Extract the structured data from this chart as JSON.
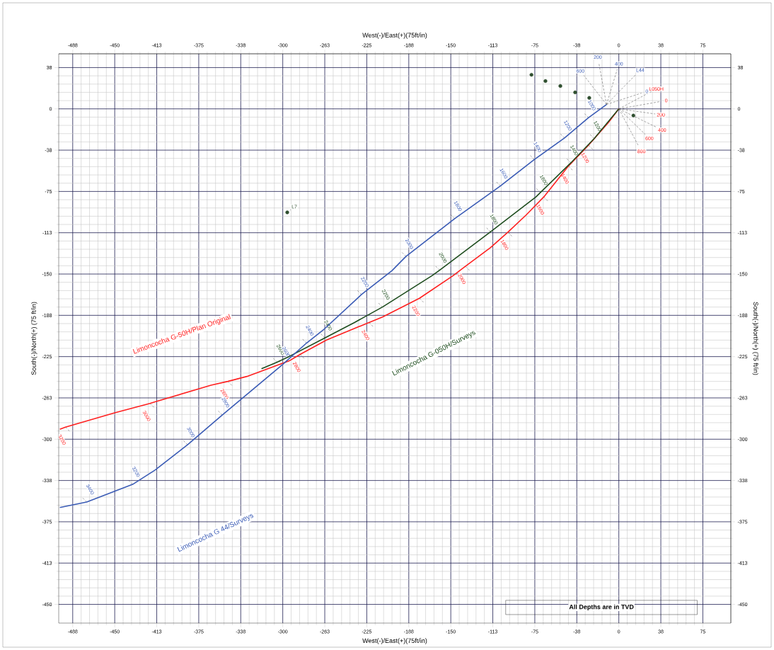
{
  "chart_data": {
    "type": "line",
    "xlabel": "West(-)/East(+)(75ft/in)",
    "x2label": "West(-)/East(+)(75ft/in)",
    "ylabel": "South(-)/North(+) (75 ft/in)",
    "y2label": "South(-)/North(+) (75 ft/in)",
    "xlim": [
      -500,
      100
    ],
    "ylim": [
      -467,
      50
    ],
    "x2lim": [
      -500,
      100
    ],
    "y2lim": [
      -467,
      50
    ],
    "xticks": [
      {
        "value": -487.5,
        "label": "-488"
      },
      -450,
      {
        "value": -412.5,
        "label": "-413"
      },
      -375,
      {
        "value": -337.5,
        "label": "-338"
      },
      -300,
      {
        "value": -262.5,
        "label": "-263"
      },
      -225,
      {
        "value": -187.5,
        "label": "-188"
      },
      -150,
      {
        "value": -112.5,
        "label": "-113"
      },
      -75,
      {
        "value": -37.5,
        "label": "-38"
      },
      0,
      {
        "value": 37.5,
        "label": "38"
      },
      75
    ],
    "x2ticks": [
      {
        "value": -487.5,
        "label": "-488"
      },
      -450,
      {
        "value": -412.5,
        "label": "-413"
      },
      -375,
      {
        "value": -337.5,
        "label": "-338"
      },
      -300,
      {
        "value": -262.5,
        "label": "-263"
      },
      -225,
      {
        "value": -187.5,
        "label": "-188"
      },
      -150,
      {
        "value": -112.5,
        "label": "-113"
      },
      -75,
      {
        "value": -37.5,
        "label": "-38"
      },
      0,
      {
        "value": 37.5,
        "label": "38"
      },
      75
    ],
    "yticks": [
      {
        "value": 37.5,
        "label": "38"
      },
      0,
      {
        "value": -37.5,
        "label": "-38"
      },
      -75,
      {
        "value": -112.5,
        "label": "-113"
      },
      -150,
      {
        "value": -187.5,
        "label": "-188"
      },
      -225,
      {
        "value": -262.5,
        "label": "-263"
      },
      -300,
      {
        "value": -337.5,
        "label": "-338"
      },
      -375,
      {
        "value": -412.5,
        "label": "-413"
      },
      -450
    ],
    "y2ticks": [
      {
        "value": 37.5,
        "label": "38"
      },
      0,
      {
        "value": -37.5,
        "label": "-38"
      },
      -75,
      {
        "value": -112.5,
        "label": "-113"
      },
      -150,
      {
        "value": -187.5,
        "label": "-188"
      },
      -225,
      {
        "value": -262.5,
        "label": "-263"
      },
      -300,
      {
        "value": -337.5,
        "label": "-338"
      },
      -375,
      {
        "value": -412.5,
        "label": "-413"
      },
      -450
    ],
    "grid": true,
    "line_style": "solid",
    "series": [
      {
        "name": "Limoncocha G-50H/Plan Original",
        "color": "#ff2020",
        "x": [
          0,
          -9.4,
          -27,
          -45,
          -67,
          -83,
          -99,
          -114.5,
          -137,
          -148,
          -178,
          -211,
          -223,
          -261,
          -284.5,
          -294.5,
          -332,
          -349,
          -364,
          -414,
          -418.5,
          -450,
          -494,
          -499
        ],
        "values": [
          0,
          -12.6,
          -33,
          -52,
          -80,
          -96.6,
          -112,
          -126,
          -143,
          -151.5,
          -172,
          -189,
          -194,
          -210,
          -223,
          -229,
          -243,
          -247.5,
          -251,
          -266,
          -267.5,
          -276,
          -289,
          -291
        ]
      },
      {
        "name": "Limoncocha G-050H/Surveys",
        "color": "#1e4d1e",
        "x": [
          0,
          -22,
          -42.8,
          -70,
          -74,
          -114.5,
          -160,
          -166.8,
          -211,
          -236,
          -262.4,
          -294.5,
          -305,
          -319
        ],
        "values": [
          0,
          -27,
          -49,
          -76,
          -80,
          -111.7,
          -146.5,
          -151.5,
          -180,
          -194,
          -208,
          -225,
          -230,
          -236
        ]
      },
      {
        "name": "Limoncocha G 44/Surveys",
        "color": "#3a5bb5",
        "x": [
          -11,
          -27,
          -48.5,
          -75.5,
          -105.7,
          -146.6,
          -190,
          -202.6,
          -229.7,
          -263,
          -278.8,
          -300,
          -354,
          -385,
          -414,
          -434,
          -475,
          -499
        ],
        "values": [
          4,
          -8,
          -26.5,
          -46,
          -70,
          -99.7,
          -134,
          -147,
          -168.6,
          -200,
          -212.7,
          -232,
          -278,
          -305,
          -328,
          -341,
          -357,
          -362
        ]
      },
      {
        "type": "scatter",
        "color": "#2f4f2f",
        "x": [
          -78,
          -65.5,
          -52.2,
          -39,
          -26.4,
          13,
          -296
        ],
        "values": [
          31,
          25.3,
          20.8,
          15,
          10,
          -6,
          -94
        ]
      }
    ],
    "annotations": [
      "All Depths are in TVD",
      {
        "text": "L7",
        "x": -296,
        "y": -94
      },
      {
        "text": "L050H",
        "x": 0,
        "y": 0
      },
      {
        "text": "0",
        "x": 0,
        "y": 0
      },
      {
        "text": "200",
        "x": 0,
        "y": 0
      },
      {
        "text": "400",
        "x": 0,
        "y": 0
      },
      {
        "text": "600",
        "x": 0,
        "y": 0
      },
      {
        "text": "800",
        "x": 0,
        "y": 0
      },
      {
        "text": "600",
        "x": -11,
        "y": 4
      },
      {
        "text": "200",
        "x": -11,
        "y": 4
      },
      {
        "text": "400",
        "x": -11,
        "y": 4
      },
      {
        "text": "L44",
        "x": -11,
        "y": 4
      },
      {
        "text": "0",
        "x": -11,
        "y": 4
      },
      {
        "text": "1200",
        "x": -27,
        "y": -33
      },
      {
        "text": "1400",
        "x": -45,
        "y": -52
      },
      {
        "text": "1600",
        "x": -67,
        "y": -80
      },
      {
        "text": "1800",
        "x": -99,
        "y": -112
      },
      {
        "text": "2000",
        "x": -137,
        "y": -143
      },
      {
        "text": "2200",
        "x": -178,
        "y": -172
      },
      {
        "text": "2400",
        "x": -223,
        "y": -194
      },
      {
        "text": "2800",
        "x": -284.5,
        "y": -223
      },
      {
        "text": "2600",
        "x": -349,
        "y": -247.5
      },
      {
        "text": "3000",
        "x": -418.5,
        "y": -267.5
      },
      {
        "text": "3200",
        "x": -494,
        "y": -289
      },
      {
        "text": "1200",
        "x": -22,
        "y": -27
      },
      {
        "text": "1400",
        "x": -42.8,
        "y": -49
      },
      {
        "text": "1600",
        "x": -70,
        "y": -76
      },
      {
        "text": "1800",
        "x": -114.5,
        "y": -111.7
      },
      {
        "text": "2000",
        "x": -160,
        "y": -146.5
      },
      {
        "text": "2200",
        "x": -211,
        "y": -180
      },
      {
        "text": "2400",
        "x": -262.4,
        "y": -208
      },
      {
        "text": "2600",
        "x": -305,
        "y": -230
      },
      {
        "text": "1000",
        "x": -27,
        "y": -8
      },
      {
        "text": "1200",
        "x": -48.5,
        "y": -26.5
      },
      {
        "text": "1400",
        "x": -75.5,
        "y": -46
      },
      {
        "text": "1600",
        "x": -105.7,
        "y": -70
      },
      {
        "text": "1800",
        "x": -146.6,
        "y": -99.7
      },
      {
        "text": "2000",
        "x": -190,
        "y": -134
      },
      {
        "text": "2200",
        "x": -229.7,
        "y": -168.6
      },
      {
        "text": "2400",
        "x": -278.8,
        "y": -212.7
      },
      {
        "text": "2600",
        "x": -300,
        "y": -232
      },
      {
        "text": "2800",
        "x": -354,
        "y": -278
      },
      {
        "text": "3000",
        "x": -385,
        "y": -305
      },
      {
        "text": "3200",
        "x": -434,
        "y": -341
      },
      {
        "text": "3400",
        "x": -475,
        "y": -357
      }
    ]
  }
}
